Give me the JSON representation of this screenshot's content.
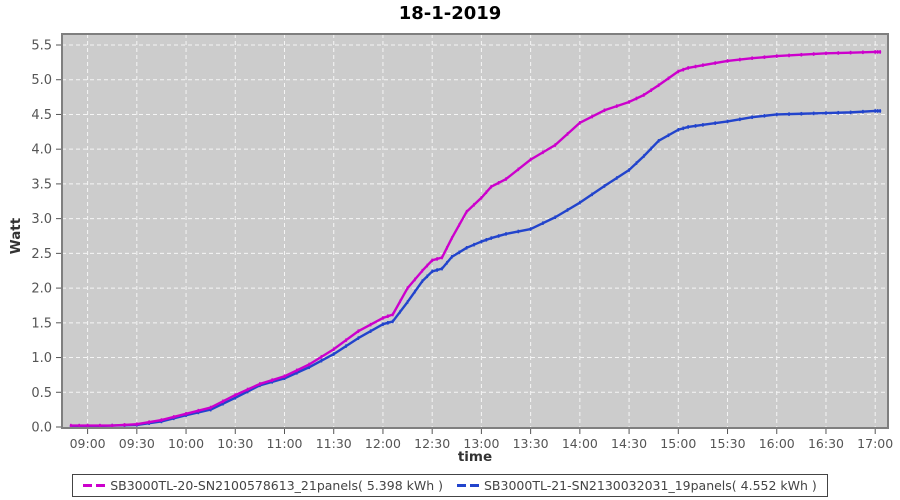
{
  "title": "18-1-2019",
  "axis": {
    "x_label": "time",
    "y_label": "Watt"
  },
  "legend": {
    "entries": [
      {
        "label": "SB3000TL-20-SN2100578613_21panels( 5.398 kWh )",
        "color": "#cc00cc"
      },
      {
        "label": "SB3000TL-21-SN2130032031_19panels( 4.552 kWh )",
        "color": "#2244cc"
      }
    ]
  },
  "colors": {
    "plot_bg": "#cccccc",
    "grid": "#f5f5f5",
    "plot_border": "#7f7f7f",
    "tick_mark": "#555555",
    "tick_text": "#555555",
    "title_text": "#000000"
  },
  "chart_data": {
    "type": "line",
    "title": "18-1-2019",
    "xlabel": "time",
    "ylabel": "Watt",
    "grid": "white-dashed",
    "legend_position": "bottom",
    "x_ticks": [
      "09:00",
      "09:30",
      "10:00",
      "10:30",
      "11:00",
      "11:30",
      "12:00",
      "12:30",
      "13:00",
      "13:30",
      "14:00",
      "14:30",
      "15:00",
      "15:30",
      "16:00",
      "16:30",
      "17:00"
    ],
    "x_tick_hours": [
      9,
      9.5,
      10,
      10.5,
      11,
      11.5,
      12,
      12.5,
      13,
      13.5,
      14,
      14.5,
      15,
      15.5,
      16,
      16.5,
      17
    ],
    "y_ticks": [
      0.0,
      0.5,
      1.0,
      1.5,
      2.0,
      2.5,
      3.0,
      3.5,
      4.0,
      4.5,
      5.0,
      5.5
    ],
    "x_range": [
      8.74,
      17.13
    ],
    "y_range": [
      0,
      5.65
    ],
    "x_hours": [
      8.83,
      9.0,
      9.25,
      9.5,
      9.75,
      10.0,
      10.25,
      10.5,
      10.75,
      11.0,
      11.25,
      11.5,
      11.75,
      12.0,
      12.1,
      12.25,
      12.4,
      12.5,
      12.6,
      12.7,
      12.85,
      13.0,
      13.1,
      13.25,
      13.5,
      13.75,
      14.0,
      14.25,
      14.5,
      14.65,
      14.8,
      15.0,
      15.1,
      15.25,
      15.5,
      15.75,
      16.0,
      16.25,
      16.5,
      16.75,
      17.0,
      17.05
    ],
    "series": [
      {
        "name": "SB3000TL-20-SN2100578613_21panels( 5.398 kWh )",
        "color": "#cc00cc",
        "total_kwh": 5.398,
        "values": [
          0.02,
          0.02,
          0.02,
          0.04,
          0.1,
          0.19,
          0.28,
          0.46,
          0.62,
          0.73,
          0.9,
          1.12,
          1.38,
          1.57,
          1.62,
          2.0,
          2.25,
          2.4,
          2.44,
          2.72,
          3.1,
          3.3,
          3.46,
          3.57,
          3.85,
          4.06,
          4.38,
          4.56,
          4.68,
          4.78,
          4.92,
          5.12,
          5.17,
          5.21,
          5.27,
          5.31,
          5.34,
          5.36,
          5.38,
          5.39,
          5.4,
          5.4
        ]
      },
      {
        "name": "SB3000TL-21-SN2130032031_19panels( 4.552 kWh )",
        "color": "#2244cc",
        "total_kwh": 4.552,
        "values": [
          0.01,
          0.01,
          0.02,
          0.03,
          0.08,
          0.17,
          0.25,
          0.42,
          0.6,
          0.7,
          0.86,
          1.05,
          1.28,
          1.48,
          1.52,
          1.8,
          2.1,
          2.24,
          2.28,
          2.45,
          2.58,
          2.67,
          2.72,
          2.78,
          2.85,
          3.02,
          3.23,
          3.47,
          3.7,
          3.9,
          4.12,
          4.28,
          4.32,
          4.35,
          4.4,
          4.46,
          4.5,
          4.51,
          4.52,
          4.53,
          4.55,
          4.55
        ]
      }
    ]
  }
}
